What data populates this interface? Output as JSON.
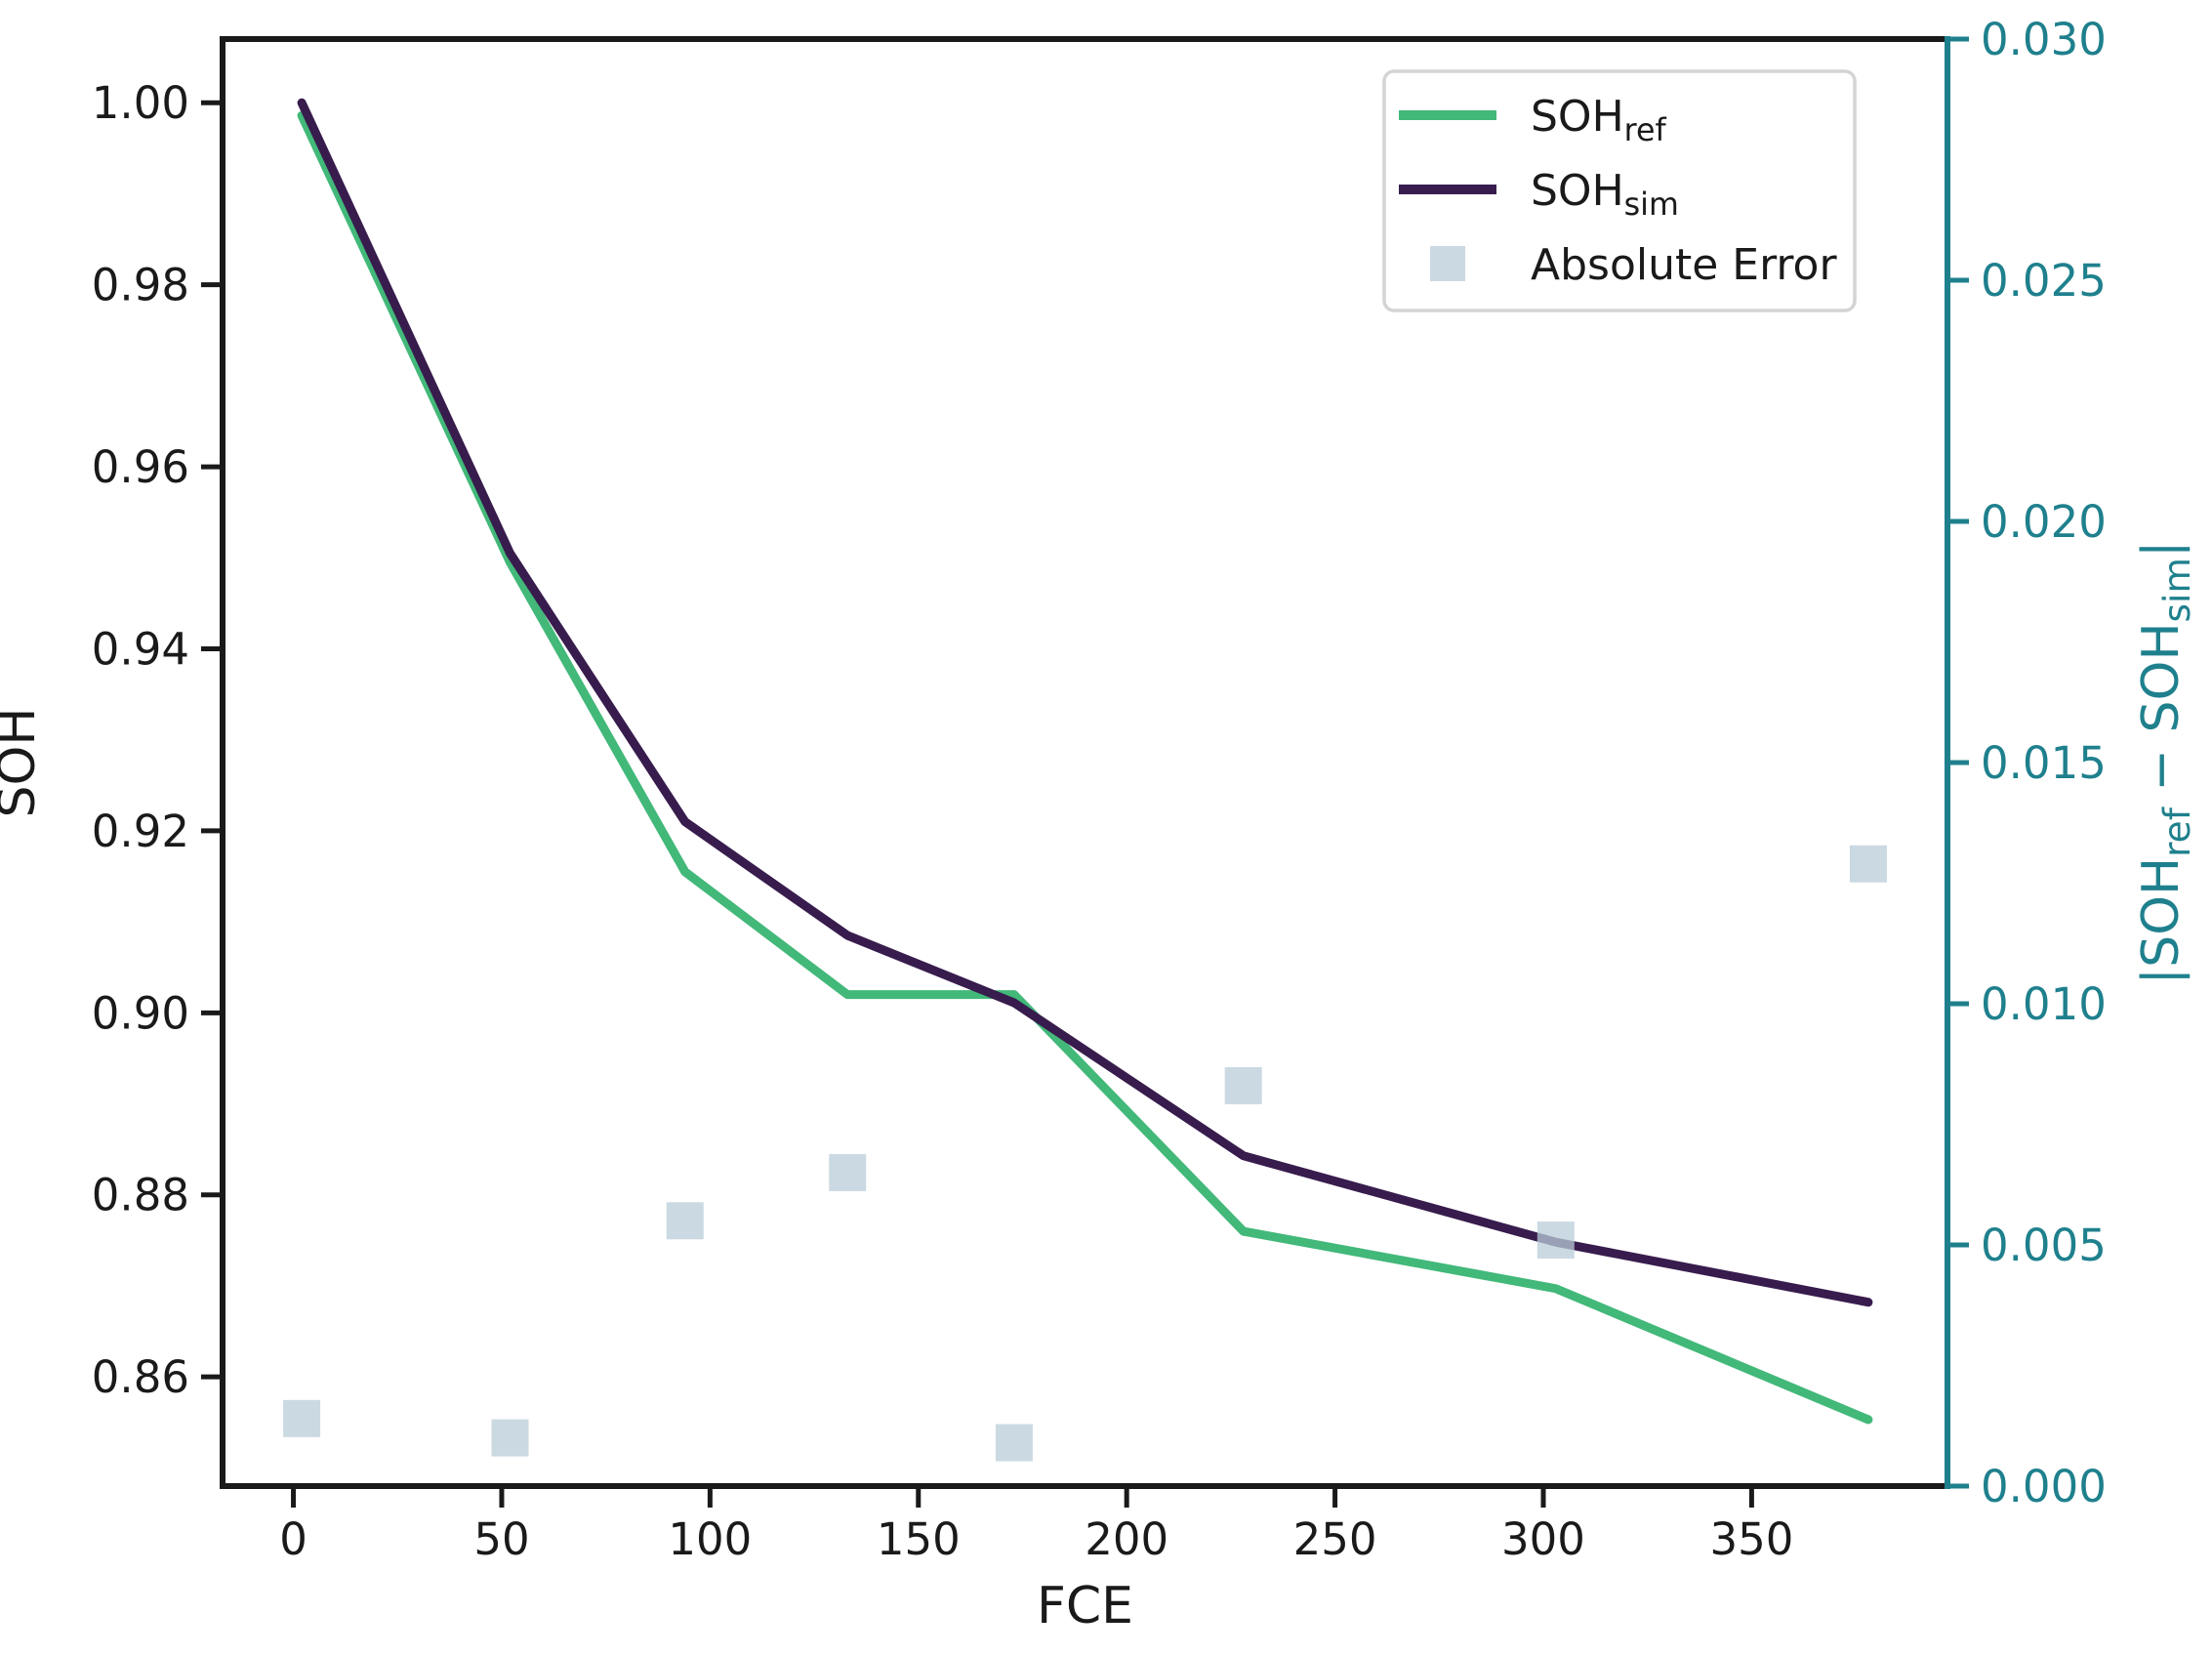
{
  "figure": {
    "background": "#ffffff"
  },
  "colors": {
    "axes_and_text": "#1a1a1a",
    "right_axis": "#1f808d",
    "soh_ref_line": "#42b879",
    "soh_sim_line": "#381c4d",
    "error_marker": "#b9ccd8",
    "legend_border": "#d4d4d4",
    "legend_background": "#ffffff"
  },
  "chart_data": {
    "type": "line",
    "title": "",
    "xlabel": "FCE",
    "ylabel_left": "SOH",
    "ylabel_right": "|SOH_ref − SOH_sim|",
    "ylabel_right_parts": [
      {
        "text": "|SOH",
        "sub": false
      },
      {
        "text": "ref",
        "sub": true
      },
      {
        "text": " − SOH",
        "sub": false
      },
      {
        "text": "sim",
        "sub": true
      },
      {
        "text": "|",
        "sub": false
      }
    ],
    "x": [
      2,
      52,
      94,
      133,
      173,
      228,
      303,
      378
    ],
    "series": [
      {
        "name": "SOH_ref",
        "legend_main": "SOH",
        "legend_sub": "ref",
        "type": "line",
        "axis": "left",
        "color": "#42b879",
        "values": [
          0.9986,
          0.9495,
          0.9155,
          0.902,
          0.902,
          0.876,
          0.8697,
          0.8553
        ]
      },
      {
        "name": "SOH_sim",
        "legend_main": "SOH",
        "legend_sub": "sim",
        "type": "line",
        "axis": "left",
        "color": "#381c4d",
        "values": [
          1.0,
          0.9505,
          0.921,
          0.9085,
          0.9011,
          0.8843,
          0.8748,
          0.8682
        ]
      },
      {
        "name": "Absolute Error",
        "legend_main": "Absolute Error",
        "legend_sub": "",
        "type": "scatter-square",
        "axis": "right",
        "color": "#b9ccd8",
        "opacity": 0.75,
        "values": [
          0.0014,
          0.001,
          0.0055,
          0.0065,
          0.0009,
          0.0083,
          0.0051,
          0.0129
        ]
      }
    ],
    "xlim": [
      -17,
      397
    ],
    "ylim_left": [
      0.848,
      1.007
    ],
    "ylim_right": [
      0.0,
      0.03
    ],
    "xticks": [
      0,
      50,
      100,
      150,
      200,
      250,
      300,
      350
    ],
    "xtick_labels": [
      "0",
      "50",
      "100",
      "150",
      "200",
      "250",
      "300",
      "350"
    ],
    "yticks_left": [
      0.86,
      0.88,
      0.9,
      0.92,
      0.94,
      0.96,
      0.98,
      1.0
    ],
    "ytick_left_labels": [
      "0.86",
      "0.88",
      "0.90",
      "0.92",
      "0.94",
      "0.96",
      "0.98",
      "1.00"
    ],
    "yticks_right": [
      0.0,
      0.005,
      0.01,
      0.015,
      0.02,
      0.025,
      0.03
    ],
    "ytick_right_labels": [
      "0.000",
      "0.005",
      "0.010",
      "0.015",
      "0.020",
      "0.025",
      "0.030"
    ],
    "grid": false,
    "legend_position": "upper right"
  }
}
